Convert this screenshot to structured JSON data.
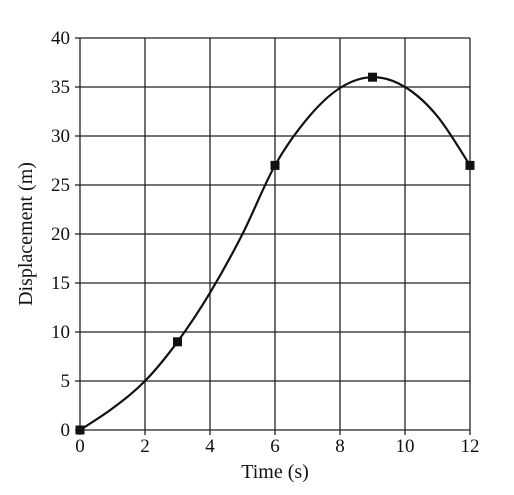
{
  "chart_data": {
    "type": "line",
    "title": "",
    "xlabel": "Time (s)",
    "ylabel": "Displacement (m)",
    "xlim": [
      0,
      12
    ],
    "ylim": [
      0,
      40
    ],
    "x_ticks": [
      0,
      2,
      4,
      6,
      8,
      10,
      12
    ],
    "y_ticks": [
      0,
      5,
      10,
      15,
      20,
      25,
      30,
      35,
      40
    ],
    "grid": true,
    "series": [
      {
        "markers": [
          {
            "x": 0,
            "y": 0
          },
          {
            "x": 3,
            "y": 9
          },
          {
            "x": 6,
            "y": 27
          },
          {
            "x": 9,
            "y": 36
          },
          {
            "x": 12,
            "y": 27
          }
        ],
        "curve": [
          {
            "x": 0,
            "y": 0
          },
          {
            "x": 1,
            "y": 2.2
          },
          {
            "x": 2,
            "y": 5
          },
          {
            "x": 3,
            "y": 9
          },
          {
            "x": 4,
            "y": 14
          },
          {
            "x": 5,
            "y": 20
          },
          {
            "x": 6,
            "y": 27
          },
          {
            "x": 7,
            "y": 31.8
          },
          {
            "x": 8,
            "y": 34.9
          },
          {
            "x": 9,
            "y": 36
          },
          {
            "x": 10,
            "y": 35
          },
          {
            "x": 11,
            "y": 32
          },
          {
            "x": 12,
            "y": 27
          }
        ]
      }
    ],
    "colors": {
      "line": "#111111",
      "grid": "#222222",
      "marker": "#111111"
    }
  }
}
